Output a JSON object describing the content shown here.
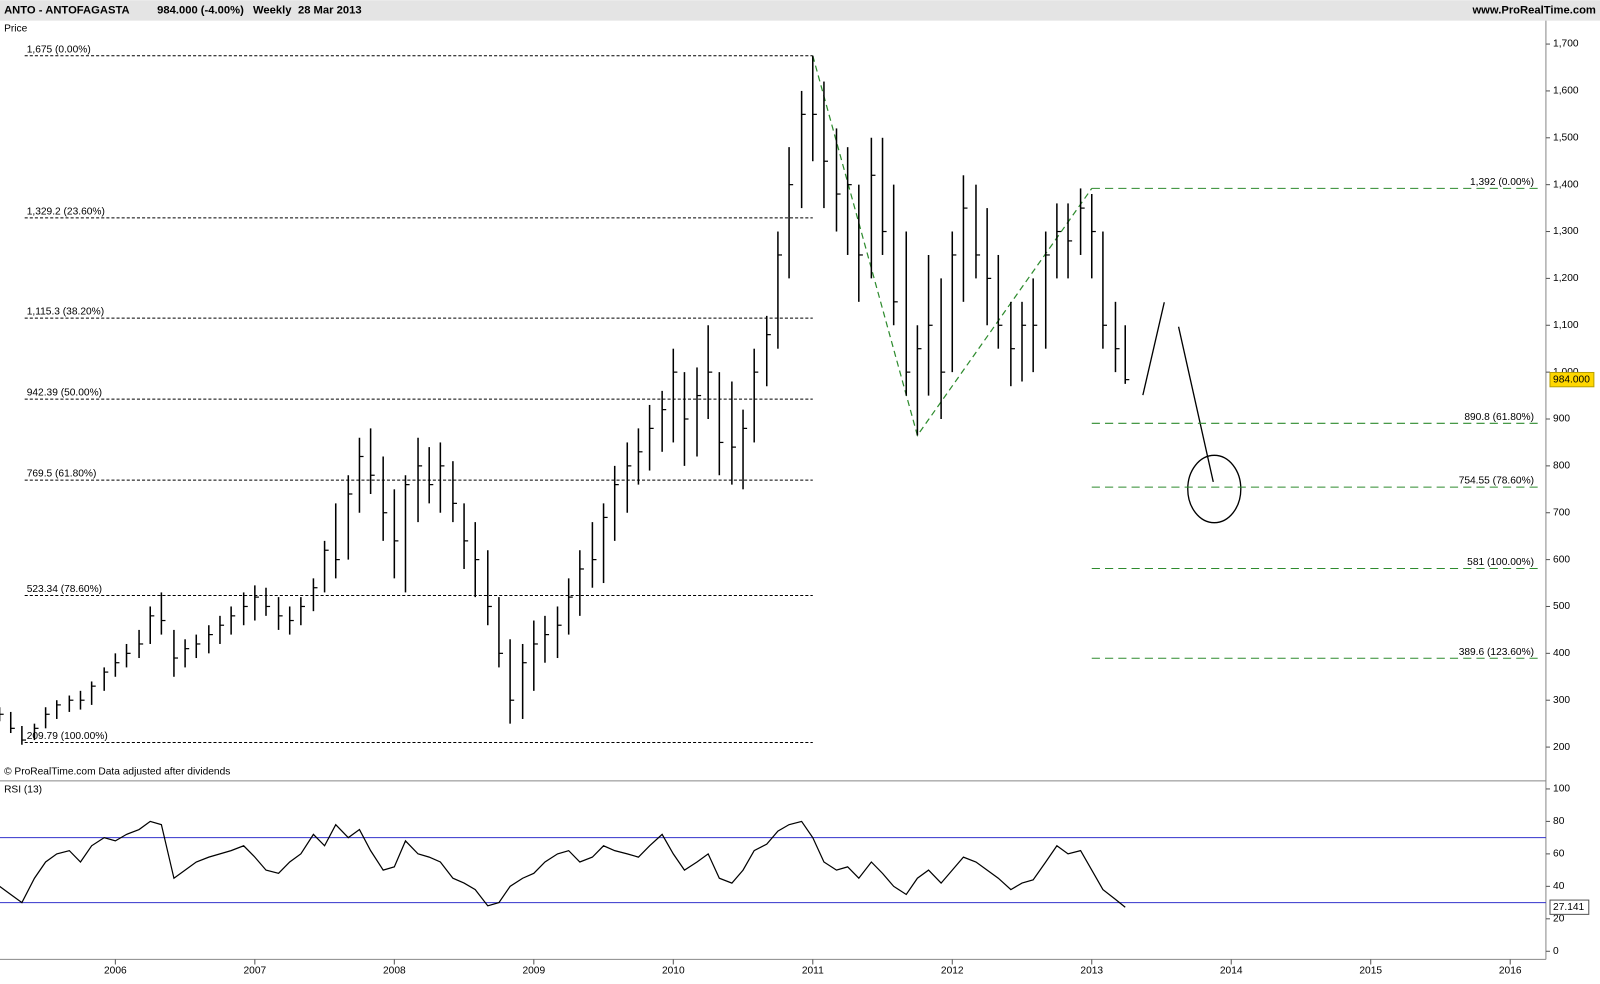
{
  "chart_data": [
    {
      "type": "ohlc",
      "title": "ANTO - ANTOFAGASTA",
      "subtitle": "984.000 (-4.00%)",
      "interval": "Weekly",
      "date": "28 Mar 2013",
      "source": "www.ProRealTime.com",
      "ylabel": "Price",
      "footnote": "© ProRealTime.com  Data adjusted after dividends",
      "last_label": "984.000",
      "xlim": [
        2005.173,
        2016.256
      ],
      "xticks": [
        2006,
        2007,
        2008,
        2009,
        2010,
        2011,
        2012,
        2013,
        2014,
        2015,
        2016
      ],
      "ylim": [
        128,
        1750
      ],
      "yticks": [
        200,
        300,
        400,
        500,
        600,
        700,
        800,
        900,
        {
          "value": 1000,
          "label": "1,000"
        },
        {
          "value": 1100,
          "label": "1,100"
        },
        {
          "value": 1200,
          "label": "1,200"
        },
        {
          "value": 1300,
          "label": "1,300"
        },
        {
          "value": 1400,
          "label": "1,400"
        },
        {
          "value": 1500,
          "label": "1,500"
        },
        {
          "value": 1600,
          "label": "1,600"
        },
        {
          "value": 1700,
          "label": "1,700"
        }
      ],
      "color": "#000000",
      "x": [
        2005.17,
        2005.25,
        2005.33,
        2005.42,
        2005.5,
        2005.58,
        2005.67,
        2005.75,
        2005.83,
        2005.92,
        2006.0,
        2006.08,
        2006.17,
        2006.25,
        2006.33,
        2006.42,
        2006.5,
        2006.58,
        2006.67,
        2006.75,
        2006.83,
        2006.92,
        2007.0,
        2007.08,
        2007.17,
        2007.25,
        2007.33,
        2007.42,
        2007.5,
        2007.58,
        2007.67,
        2007.75,
        2007.83,
        2007.92,
        2008.0,
        2008.08,
        2008.17,
        2008.25,
        2008.33,
        2008.42,
        2008.5,
        2008.58,
        2008.67,
        2008.75,
        2008.83,
        2008.92,
        2009.0,
        2009.08,
        2009.17,
        2009.25,
        2009.33,
        2009.42,
        2009.5,
        2009.58,
        2009.67,
        2009.75,
        2009.83,
        2009.92,
        2010.0,
        2010.08,
        2010.17,
        2010.25,
        2010.33,
        2010.42,
        2010.5,
        2010.58,
        2010.67,
        2010.75,
        2010.83,
        2010.92,
        2011.0,
        2011.08,
        2011.17,
        2011.25,
        2011.33,
        2011.42,
        2011.5,
        2011.58,
        2011.67,
        2011.75,
        2011.83,
        2011.92,
        2012.0,
        2012.08,
        2012.17,
        2012.25,
        2012.33,
        2012.42,
        2012.5,
        2012.58,
        2012.67,
        2012.75,
        2012.83,
        2012.92,
        2013.0,
        2013.08,
        2013.17,
        2013.24
      ],
      "high": [
        285,
        275,
        245,
        250,
        285,
        300,
        310,
        320,
        340,
        370,
        400,
        420,
        450,
        500,
        530,
        450,
        430,
        440,
        460,
        480,
        500,
        530,
        545,
        540,
        520,
        500,
        520,
        560,
        640,
        720,
        780,
        860,
        880,
        820,
        750,
        780,
        860,
        840,
        850,
        810,
        720,
        680,
        620,
        520,
        430,
        420,
        470,
        480,
        500,
        560,
        620,
        680,
        720,
        800,
        850,
        880,
        930,
        960,
        1050,
        1000,
        1010,
        1100,
        1000,
        980,
        920,
        1050,
        1120,
        1300,
        1480,
        1600,
        1675,
        1620,
        1520,
        1480,
        1400,
        1500,
        1500,
        1400,
        1300,
        1100,
        1250,
        1200,
        1300,
        1420,
        1400,
        1350,
        1250,
        1150,
        1150,
        1200,
        1300,
        1360,
        1360,
        1392,
        1380,
        1300,
        1150,
        1100
      ],
      "low": [
        255,
        230,
        205,
        215,
        240,
        260,
        275,
        280,
        290,
        320,
        350,
        370,
        390,
        420,
        440,
        350,
        370,
        390,
        400,
        420,
        440,
        460,
        470,
        480,
        450,
        440,
        460,
        490,
        530,
        560,
        600,
        700,
        740,
        640,
        560,
        530,
        680,
        720,
        700,
        680,
        580,
        520,
        460,
        370,
        250,
        260,
        320,
        380,
        390,
        440,
        480,
        540,
        550,
        640,
        700,
        760,
        790,
        830,
        850,
        800,
        820,
        900,
        780,
        760,
        750,
        850,
        970,
        1050,
        1200,
        1350,
        1450,
        1350,
        1300,
        1250,
        1150,
        1200,
        1250,
        1100,
        950,
        865,
        950,
        900,
        1000,
        1150,
        1200,
        1100,
        1050,
        970,
        980,
        1000,
        1050,
        1200,
        1200,
        1250,
        1200,
        1050,
        1000,
        975
      ],
      "close": [
        270,
        240,
        215,
        240,
        270,
        290,
        300,
        300,
        330,
        360,
        380,
        400,
        420,
        480,
        470,
        390,
        410,
        420,
        440,
        460,
        480,
        500,
        520,
        500,
        480,
        470,
        500,
        540,
        620,
        600,
        740,
        820,
        780,
        700,
        640,
        760,
        800,
        760,
        800,
        720,
        640,
        600,
        500,
        400,
        300,
        380,
        420,
        440,
        460,
        520,
        580,
        600,
        690,
        760,
        800,
        830,
        880,
        920,
        1000,
        900,
        950,
        1000,
        850,
        840,
        880,
        1000,
        1080,
        1250,
        1400,
        1550,
        1550,
        1450,
        1380,
        1400,
        1250,
        1420,
        1300,
        1150,
        1000,
        1050,
        1100,
        1000,
        1250,
        1350,
        1250,
        1200,
        1100,
        1050,
        1100,
        1100,
        1250,
        1300,
        1280,
        1350,
        1300,
        1100,
        1050,
        984
      ],
      "fib_levels": {
        "color": "#000000",
        "from": 2005.35,
        "to": 2011.0,
        "levels": [
          {
            "value": 1675,
            "label": "1,675 (0.00%)"
          },
          {
            "value": 1329.2,
            "label": "1,329.2 (23.60%)"
          },
          {
            "value": 1115.3,
            "label": "1,115.3 (38.20%)"
          },
          {
            "value": 942.39,
            "label": "942.39 (50.00%)"
          },
          {
            "value": 769.5,
            "label": "769.5 (61.80%)"
          },
          {
            "value": 523.34,
            "label": "523.34 (78.60%)"
          },
          {
            "value": 209.79,
            "label": "209.79 (100.00%)"
          }
        ]
      },
      "fib_levels_2": {
        "color": "#2e8b2e",
        "from": 2013.0,
        "to": 2016.2,
        "levels": [
          {
            "value": 1392,
            "label": "1,392 (0.00%)"
          },
          {
            "value": 890.8,
            "label": "890.8 (61.80%)"
          },
          {
            "value": 754.55,
            "label": "754.55 (78.60%)"
          },
          {
            "value": 581,
            "label": "581 (100.00%)"
          },
          {
            "value": 389.6,
            "label": "389.6 (123.60%)"
          }
        ]
      },
      "zigzag": {
        "color": "#2e8b2e",
        "x": [
          2011.0,
          2011.75,
          2013.0
        ],
        "y": [
          1675,
          865,
          1392
        ]
      }
    },
    {
      "type": "line",
      "title": "RSI (13)",
      "ylim": [
        -5,
        105
      ],
      "yticks": [
        0,
        20,
        40,
        60,
        80,
        100
      ],
      "levels": [
        30,
        70
      ],
      "level_color": "#3333cc",
      "color": "#000000",
      "values": [
        40,
        35,
        30,
        45,
        55,
        60,
        62,
        55,
        65,
        70,
        68,
        72,
        75,
        80,
        78,
        45,
        50,
        55,
        58,
        60,
        62,
        65,
        58,
        50,
        48,
        55,
        60,
        72,
        65,
        78,
        70,
        75,
        62,
        50,
        52,
        68,
        60,
        58,
        55,
        45,
        42,
        38,
        28,
        30,
        40,
        45,
        48,
        55,
        60,
        62,
        55,
        58,
        65,
        62,
        60,
        58,
        65,
        72,
        60,
        50,
        55,
        60,
        45,
        42,
        50,
        62,
        66,
        74,
        78,
        80,
        70,
        55,
        50,
        52,
        45,
        55,
        48,
        40,
        35,
        45,
        50,
        42,
        50,
        58,
        55,
        50,
        45,
        38,
        42,
        44,
        55,
        65,
        60,
        62,
        50,
        38,
        32,
        27.141
      ]
    }
  ]
}
